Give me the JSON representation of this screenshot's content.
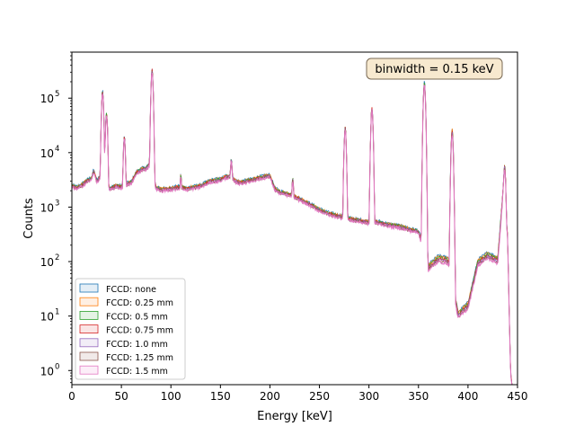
{
  "chart_data": {
    "type": "area",
    "xlabel": "Energy [keV]",
    "ylabel": "Counts",
    "xlim": [
      0,
      450
    ],
    "ylim": [
      0.55,
      700000
    ],
    "yscale": "log",
    "xticks": [
      0,
      50,
      100,
      150,
      200,
      250,
      300,
      350,
      400,
      450
    ],
    "xtick_labels": [
      "0",
      "50",
      "100",
      "150",
      "200",
      "250",
      "300",
      "350",
      "400",
      "450"
    ],
    "yticks": [
      1,
      10,
      100,
      1000,
      10000,
      100000
    ],
    "ytick_base": "10",
    "ytick_exponents": [
      "0",
      "1",
      "2",
      "3",
      "4",
      "5"
    ],
    "annotation": "binwidth = 0.15 keV",
    "legend_position": "lower-left",
    "grid": false,
    "series": [
      {
        "name": "FCCD: none",
        "color": "#1f77b4"
      },
      {
        "name": "FCCD: 0.25 mm",
        "color": "#ff7f0e"
      },
      {
        "name": "FCCD: 0.5 mm",
        "color": "#2ca02c"
      },
      {
        "name": "FCCD: 0.75 mm",
        "color": "#d62728"
      },
      {
        "name": "FCCD: 1.0 mm",
        "color": "#9467bd"
      },
      {
        "name": "FCCD: 1.25 mm",
        "color": "#8c564b"
      },
      {
        "name": "FCCD: 1.5 mm",
        "color": "#e377c2"
      }
    ],
    "spectrum_envelope": {
      "energy_keV": [
        0,
        5,
        10,
        15,
        20,
        22,
        25,
        30,
        35,
        40,
        45,
        50,
        55,
        60,
        65,
        70,
        75,
        80,
        85,
        90,
        95,
        100,
        105,
        110,
        115,
        120,
        130,
        140,
        150,
        155,
        160,
        165,
        170,
        180,
        190,
        200,
        205,
        210,
        220,
        230,
        240,
        250,
        260,
        270,
        280,
        290,
        300,
        310,
        320,
        330,
        340,
        350,
        360,
        370,
        380,
        390,
        400,
        410,
        420,
        430,
        436,
        440,
        443,
        446,
        450
      ],
      "counts": [
        2600,
        2400,
        2700,
        3200,
        3600,
        5000,
        3200,
        4000,
        2200,
        2400,
        2600,
        2500,
        2800,
        3000,
        4500,
        5200,
        5500,
        7000,
        2400,
        2200,
        2300,
        2300,
        2400,
        2500,
        2300,
        2400,
        2600,
        3200,
        3400,
        3800,
        4000,
        3200,
        3000,
        3300,
        3700,
        4000,
        2300,
        2000,
        1800,
        1500,
        1200,
        950,
        800,
        720,
        650,
        600,
        560,
        560,
        500,
        470,
        420,
        380,
        90,
        130,
        120,
        12,
        18,
        110,
        150,
        120,
        3000,
        300,
        1,
        0,
        0
      ]
    },
    "peaks": [
      {
        "energy_keV": 22,
        "counts": 4500
      },
      {
        "energy_keV": 31,
        "counts": 140000
      },
      {
        "energy_keV": 35,
        "counts": 55000
      },
      {
        "energy_keV": 53,
        "counts": 20000
      },
      {
        "energy_keV": 81,
        "counts": 350000
      },
      {
        "energy_keV": 110,
        "counts": 4000
      },
      {
        "energy_keV": 161,
        "counts": 8000
      },
      {
        "energy_keV": 223,
        "counts": 3500
      },
      {
        "energy_keV": 276,
        "counts": 30000
      },
      {
        "energy_keV": 303,
        "counts": 70000
      },
      {
        "energy_keV": 356,
        "counts": 200000
      },
      {
        "energy_keV": 384,
        "counts": 28000
      },
      {
        "energy_keV": 437,
        "counts": 6000
      }
    ]
  }
}
